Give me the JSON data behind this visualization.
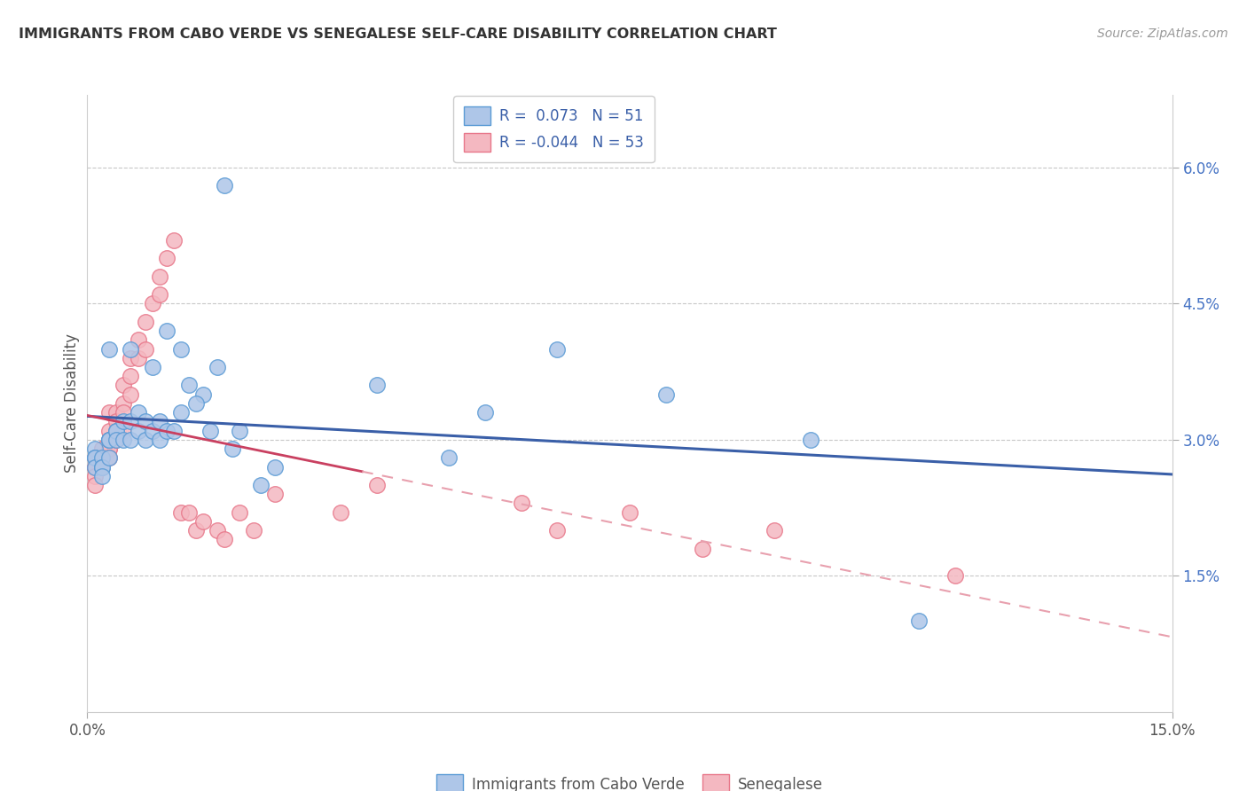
{
  "title": "IMMIGRANTS FROM CABO VERDE VS SENEGALESE SELF-CARE DISABILITY CORRELATION CHART",
  "source": "Source: ZipAtlas.com",
  "ylabel": "Self-Care Disability",
  "ytick_vals": [
    0.015,
    0.03,
    0.045,
    0.06
  ],
  "ytick_labels": [
    "1.5%",
    "3.0%",
    "4.5%",
    "6.0%"
  ],
  "xtick_vals": [
    0.0,
    0.15
  ],
  "xtick_labels": [
    "0.0%",
    "15.0%"
  ],
  "xlim": [
    0.0,
    0.15
  ],
  "ylim": [
    0.0,
    0.068
  ],
  "cabo_verde_x": [
    0.019,
    0.003,
    0.006,
    0.009,
    0.011,
    0.013,
    0.014,
    0.016,
    0.018,
    0.001,
    0.001,
    0.001,
    0.001,
    0.002,
    0.002,
    0.002,
    0.002,
    0.003,
    0.003,
    0.003,
    0.003,
    0.004,
    0.004,
    0.004,
    0.005,
    0.005,
    0.006,
    0.006,
    0.007,
    0.007,
    0.008,
    0.008,
    0.009,
    0.01,
    0.01,
    0.011,
    0.012,
    0.013,
    0.015,
    0.017,
    0.02,
    0.021,
    0.024,
    0.026,
    0.04,
    0.05,
    0.055,
    0.065,
    0.08,
    0.1,
    0.115
  ],
  "cabo_verde_y": [
    0.058,
    0.04,
    0.04,
    0.038,
    0.042,
    0.04,
    0.036,
    0.035,
    0.038,
    0.029,
    0.028,
    0.028,
    0.027,
    0.028,
    0.027,
    0.027,
    0.026,
    0.03,
    0.03,
    0.03,
    0.028,
    0.031,
    0.031,
    0.03,
    0.032,
    0.03,
    0.032,
    0.03,
    0.033,
    0.031,
    0.032,
    0.03,
    0.031,
    0.032,
    0.03,
    0.031,
    0.031,
    0.033,
    0.034,
    0.031,
    0.029,
    0.031,
    0.025,
    0.027,
    0.036,
    0.028,
    0.033,
    0.04,
    0.035,
    0.03,
    0.01
  ],
  "senegalese_x": [
    0.001,
    0.001,
    0.001,
    0.001,
    0.001,
    0.002,
    0.002,
    0.002,
    0.002,
    0.002,
    0.003,
    0.003,
    0.003,
    0.003,
    0.003,
    0.003,
    0.004,
    0.004,
    0.004,
    0.004,
    0.005,
    0.005,
    0.005,
    0.005,
    0.006,
    0.006,
    0.006,
    0.007,
    0.007,
    0.008,
    0.008,
    0.009,
    0.01,
    0.01,
    0.011,
    0.012,
    0.013,
    0.014,
    0.015,
    0.016,
    0.018,
    0.019,
    0.021,
    0.023,
    0.026,
    0.035,
    0.04,
    0.06,
    0.065,
    0.075,
    0.085,
    0.095,
    0.12
  ],
  "senegalese_y": [
    0.028,
    0.027,
    0.027,
    0.026,
    0.025,
    0.029,
    0.029,
    0.028,
    0.028,
    0.027,
    0.033,
    0.031,
    0.03,
    0.029,
    0.029,
    0.028,
    0.033,
    0.032,
    0.031,
    0.03,
    0.036,
    0.034,
    0.033,
    0.031,
    0.039,
    0.037,
    0.035,
    0.041,
    0.039,
    0.043,
    0.04,
    0.045,
    0.048,
    0.046,
    0.05,
    0.052,
    0.022,
    0.022,
    0.02,
    0.021,
    0.02,
    0.019,
    0.022,
    0.02,
    0.024,
    0.022,
    0.025,
    0.023,
    0.02,
    0.022,
    0.018,
    0.02,
    0.015
  ],
  "cabo_verde_color": "#aec6e8",
  "cabo_verde_edge": "#5b9bd5",
  "senegalese_color": "#f4b8c1",
  "senegalese_edge": "#e8778a",
  "trend_cabo_color": "#3a5fa8",
  "trend_senegal_solid_color": "#c94060",
  "trend_senegal_dash_color": "#e8a0ae",
  "background_color": "#ffffff",
  "grid_color": "#c8c8c8"
}
